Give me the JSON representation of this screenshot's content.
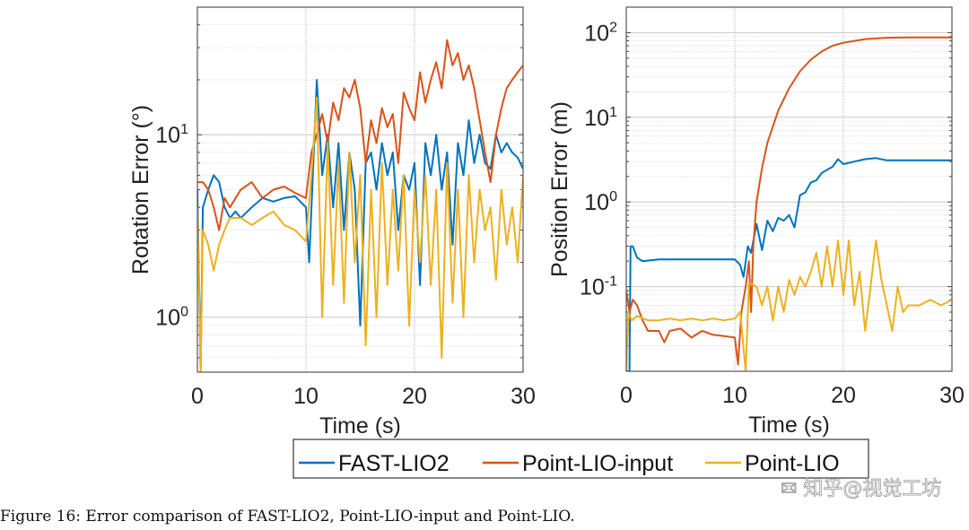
{
  "colors": {
    "FAST-LIO2": "#0072BD",
    "Point-LIO-input": "#D95319",
    "Point-LIO": "#EDB120"
  },
  "legend": {
    "items": [
      "FAST-LIO2",
      "Point-LIO-input",
      "Point-LIO"
    ],
    "placement": "bottom-center"
  },
  "caption": "Figure 16: Error comparison of FAST-LIO2, Point-LIO-input and Point-LIO.",
  "watermark": "知乎@视觉工坊",
  "chart_data": [
    {
      "type": "line",
      "xlabel": "Time (s)",
      "ylabel": "Rotation Error (°)",
      "xlim": [
        0,
        30
      ],
      "ylim": [
        0.5,
        50
      ],
      "yscale": "log",
      "grid": true,
      "xticks": [
        "0",
        "10",
        "20",
        "30"
      ],
      "yticks": [
        {
          "value": 1,
          "label": "10",
          "exp": "0"
        },
        {
          "value": 10,
          "label": "10",
          "exp": "1"
        }
      ],
      "series": [
        {
          "name": "FAST-LIO2",
          "x": [
            0,
            0.3,
            0.5,
            1,
            1.5,
            2,
            2.5,
            3,
            3.5,
            4,
            5,
            6,
            7,
            8,
            9,
            10,
            10.3,
            11,
            11.5,
            12,
            12.5,
            13,
            13.5,
            14,
            14.5,
            15,
            15.5,
            16,
            16.5,
            17,
            17.5,
            18,
            18.5,
            19,
            19.5,
            20,
            20.5,
            21,
            21.5,
            22,
            22.5,
            23,
            23.5,
            24,
            24.5,
            25,
            25.5,
            26,
            26.5,
            27,
            27.5,
            28,
            28.5,
            29,
            29.5,
            30
          ],
          "y": [
            5,
            0.5,
            4,
            5,
            6,
            5.5,
            4,
            3.5,
            3.8,
            3.5,
            4,
            4.5,
            4.3,
            4.5,
            4.6,
            4,
            2,
            20,
            6,
            10,
            4,
            9,
            3,
            8,
            5,
            0.9,
            7,
            8,
            5,
            9,
            6,
            8,
            3,
            6,
            5,
            7,
            1.5,
            9,
            6,
            10,
            5,
            8,
            2.5,
            9,
            6,
            12,
            7,
            10,
            7,
            6.5,
            10,
            8,
            9,
            8,
            7.5,
            6.5
          ]
        },
        {
          "name": "Point-LIO-input",
          "x": [
            0,
            0.5,
            1,
            1.5,
            2,
            2.5,
            3,
            4,
            5,
            6,
            7,
            8,
            9,
            10,
            10.5,
            11,
            11.5,
            12,
            12.5,
            13,
            13.5,
            14,
            14.5,
            15,
            15.5,
            16,
            16.5,
            17,
            17.5,
            18,
            18.5,
            19,
            19.5,
            20,
            20.5,
            21,
            21.5,
            22,
            22.5,
            23,
            23.5,
            24,
            24.5,
            25,
            25.5,
            26,
            26.5,
            27,
            27.5,
            28,
            28.5,
            29,
            29.5,
            30
          ],
          "y": [
            5.5,
            5.5,
            5,
            4,
            3,
            4.5,
            4,
            5,
            5.5,
            4.5,
            5,
            5.2,
            4.8,
            4.5,
            8,
            10,
            13,
            9,
            15,
            12,
            18,
            16,
            20,
            14,
            7,
            12,
            9,
            14,
            11,
            13,
            7,
            17,
            14,
            12,
            22,
            15,
            20,
            25,
            18,
            33,
            24,
            28,
            20,
            24,
            18,
            12,
            8,
            5.5,
            10,
            14,
            18,
            20,
            22,
            24
          ]
        },
        {
          "name": "Point-LIO",
          "x": [
            0,
            0.3,
            0.5,
            1,
            1.5,
            2,
            2.5,
            3,
            4,
            5,
            6,
            7,
            8,
            9,
            10,
            10.5,
            11,
            11.5,
            12,
            12.5,
            13,
            13.5,
            14,
            14.5,
            15,
            15.5,
            16,
            16.5,
            17,
            17.5,
            18,
            18.5,
            19,
            19.5,
            20,
            20.5,
            21,
            21.5,
            22,
            22.5,
            23,
            23.5,
            24,
            24.5,
            25,
            25.5,
            26,
            26.5,
            27,
            27.5,
            28,
            28.5,
            29,
            29.5,
            30
          ],
          "y": [
            4,
            0.5,
            3,
            2.5,
            1.8,
            2.5,
            3,
            3.5,
            3.5,
            3.2,
            3.5,
            3.8,
            3.2,
            3,
            2.6,
            6,
            16,
            1,
            9,
            1.5,
            7,
            1.2,
            8,
            2,
            6,
            0.7,
            5,
            1,
            7,
            1.5,
            5,
            1.8,
            6,
            0.9,
            5,
            2,
            6,
            1.5,
            5,
            0.6,
            7,
            1.2,
            5,
            1,
            6,
            2,
            5,
            3,
            4,
            1.6,
            5,
            2.5,
            4,
            2,
            6
          ]
        }
      ]
    },
    {
      "type": "line",
      "xlabel": "Time (s)",
      "ylabel": "Position Error (m)",
      "xlim": [
        0,
        30
      ],
      "ylim": [
        0.01,
        200
      ],
      "yscale": "log",
      "grid": true,
      "xticks": [
        "0",
        "10",
        "20",
        "30"
      ],
      "yticks": [
        {
          "value": 0.1,
          "label": "10",
          "exp": "-1"
        },
        {
          "value": 1,
          "label": "10",
          "exp": "0"
        },
        {
          "value": 10,
          "label": "10",
          "exp": "1"
        },
        {
          "value": 100,
          "label": "10",
          "exp": "2"
        }
      ],
      "series": [
        {
          "name": "FAST-LIO2",
          "x": [
            0,
            0.3,
            0.4,
            0.6,
            1,
            1.5,
            3,
            5,
            7,
            9,
            10,
            10.5,
            10.8,
            11.2,
            11.5,
            12,
            12.5,
            13,
            13.5,
            14,
            14.5,
            15,
            15.5,
            16,
            16.5,
            17,
            17.5,
            18,
            18.5,
            19,
            19.5,
            20,
            21,
            22,
            23,
            24,
            25,
            30
          ],
          "y": [
            0.01,
            0.01,
            0.3,
            0.3,
            0.22,
            0.2,
            0.21,
            0.21,
            0.21,
            0.21,
            0.21,
            0.18,
            0.13,
            0.3,
            0.25,
            0.55,
            0.27,
            0.6,
            0.45,
            0.65,
            0.6,
            0.7,
            0.5,
            1.2,
            1.3,
            1.7,
            1.8,
            2.2,
            2.4,
            2.6,
            3.2,
            2.8,
            3.0,
            3.2,
            3.3,
            3.1,
            3.1,
            3.1
          ]
        },
        {
          "name": "Point-LIO-input",
          "x": [
            0,
            0.3,
            0.6,
            1,
            1.5,
            2,
            3,
            3.5,
            4,
            5,
            6,
            7,
            8,
            9,
            10,
            10.3,
            10.6,
            11,
            11.3,
            11.5,
            11.7,
            12,
            12.5,
            13,
            14,
            15,
            16,
            17,
            18,
            19,
            20,
            22,
            24,
            26,
            30
          ],
          "y": [
            0.09,
            0.05,
            0.07,
            0.06,
            0.04,
            0.03,
            0.03,
            0.022,
            0.03,
            0.032,
            0.025,
            0.03,
            0.027,
            0.026,
            0.025,
            0.012,
            0.05,
            0.1,
            0.2,
            0.05,
            0.3,
            1.0,
            2.5,
            5,
            12,
            22,
            35,
            48,
            60,
            70,
            76,
            84,
            87,
            88,
            88
          ]
        },
        {
          "name": "Point-LIO",
          "x": [
            0,
            0.2,
            0.5,
            1,
            2,
            3,
            4,
            5,
            6,
            7,
            8,
            9,
            10,
            10.5,
            11,
            11.3,
            12,
            12.5,
            13,
            13.5,
            14,
            14.5,
            15,
            15.5,
            16,
            16.5,
            17,
            17.5,
            18,
            18.5,
            19,
            19.5,
            20,
            20.5,
            21,
            21.5,
            22,
            22.5,
            23,
            23.5,
            24,
            24.5,
            25,
            25.5,
            26,
            27,
            28,
            29,
            30
          ],
          "y": [
            0.01,
            0.05,
            0.04,
            0.045,
            0.04,
            0.04,
            0.042,
            0.04,
            0.042,
            0.04,
            0.042,
            0.04,
            0.042,
            0.05,
            0.01,
            0.11,
            0.1,
            0.06,
            0.1,
            0.04,
            0.1,
            0.05,
            0.12,
            0.08,
            0.13,
            0.1,
            0.15,
            0.25,
            0.1,
            0.3,
            0.1,
            0.35,
            0.08,
            0.35,
            0.06,
            0.15,
            0.03,
            0.1,
            0.35,
            0.12,
            0.06,
            0.03,
            0.1,
            0.05,
            0.06,
            0.06,
            0.07,
            0.06,
            0.07
          ]
        }
      ]
    }
  ]
}
